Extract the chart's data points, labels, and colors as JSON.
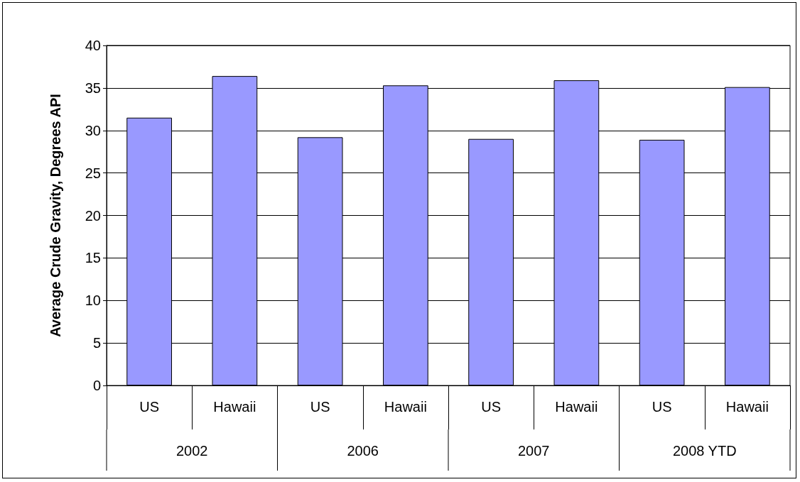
{
  "chart_data": {
    "type": "bar",
    "ylabel": "Average Crude Gravity, Degrees API",
    "categories": [
      "US",
      "Hawaii",
      "US",
      "Hawaii",
      "US",
      "Hawaii",
      "US",
      "Hawaii"
    ],
    "values": [
      31.5,
      36.4,
      29.2,
      35.3,
      29.0,
      35.9,
      28.9,
      35.1
    ],
    "color": "#9999ff",
    "ylim": [
      0,
      40
    ],
    "yticks": [
      0,
      5,
      10,
      15,
      20,
      25,
      30,
      35,
      40
    ],
    "grid": true,
    "annotations": [
      "2002",
      "2006",
      "2007",
      "2008 YTD"
    ]
  }
}
